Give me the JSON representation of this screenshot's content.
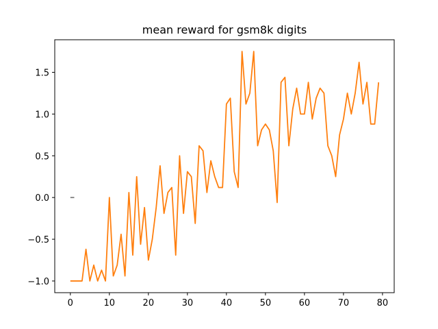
{
  "chart_data": {
    "type": "line",
    "title": "mean reward for gsm8k digits",
    "xlabel": "",
    "ylabel": "",
    "xlim": [
      -4,
      83
    ],
    "ylim": [
      -1.14,
      1.89
    ],
    "xticks": [
      0,
      10,
      20,
      30,
      40,
      50,
      60,
      70,
      80
    ],
    "yticks": [
      -1.0,
      -0.5,
      0.0,
      0.5,
      1.0,
      1.5
    ],
    "ytick_labels": [
      "−1.0",
      "−0.5",
      "0.0",
      "0.5",
      "1.0",
      "1.5"
    ],
    "grid": false,
    "series": [
      {
        "color": "#7f7f7f",
        "x": [
          0,
          1
        ],
        "values": [
          0.0,
          0.0
        ]
      },
      {
        "color": "#ff7f0e",
        "x": [
          0,
          1,
          2,
          3,
          4,
          5,
          6,
          7,
          8,
          9,
          10,
          11,
          12,
          13,
          14,
          15,
          16,
          17,
          18,
          19,
          20,
          21,
          22,
          23,
          24,
          25,
          26,
          27,
          28,
          29,
          30,
          31,
          32,
          33,
          34,
          35,
          36,
          37,
          38,
          39,
          40,
          41,
          42,
          43,
          44,
          45,
          46,
          47,
          48,
          49,
          50,
          51,
          52,
          53,
          54,
          55,
          56,
          57,
          58,
          59,
          60,
          61,
          62,
          63,
          64,
          65,
          66,
          67,
          68,
          69,
          70,
          71,
          72,
          73,
          74,
          75,
          76,
          77,
          78,
          79
        ],
        "values": [
          -1.0,
          -1.0,
          -1.0,
          -1.0,
          -0.62,
          -1.0,
          -0.81,
          -1.0,
          -0.87,
          -1.0,
          0.0,
          -0.94,
          -0.81,
          -0.44,
          -0.94,
          0.06,
          -0.69,
          0.25,
          -0.56,
          -0.12,
          -0.75,
          -0.5,
          -0.12,
          0.38,
          -0.19,
          0.06,
          0.12,
          -0.69,
          0.5,
          -0.19,
          0.31,
          0.25,
          -0.31,
          0.62,
          0.56,
          0.06,
          0.44,
          0.25,
          0.12,
          0.12,
          1.12,
          1.19,
          0.31,
          0.12,
          1.75,
          1.12,
          1.25,
          1.75,
          0.62,
          0.81,
          0.88,
          0.81,
          0.56,
          -0.06,
          1.38,
          1.44,
          0.62,
          1.06,
          1.31,
          1.0,
          1.0,
          1.38,
          0.94,
          1.19,
          1.31,
          1.25,
          0.62,
          0.5,
          0.25,
          0.75,
          0.94,
          1.25,
          1.0,
          1.25,
          1.62,
          1.12,
          1.38,
          0.88,
          0.88,
          1.38
        ]
      }
    ]
  }
}
